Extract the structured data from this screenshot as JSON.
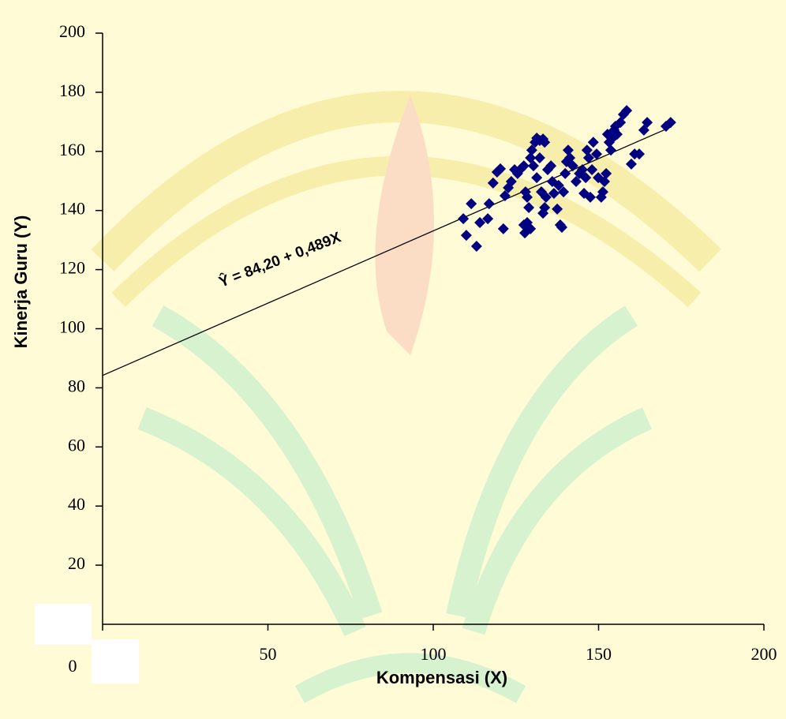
{
  "chart_data": {
    "type": "scatter",
    "x_label": "Kompensasi (X)",
    "y_label": "Kinerja Guru (Y)",
    "annotation": "Ŷ = 84,20 + 0,489X",
    "color": "#000080",
    "xlim": [
      0,
      200
    ],
    "ylim": [
      0,
      200
    ],
    "xticks": [
      0,
      50,
      100,
      150,
      200
    ],
    "yticks": [
      20,
      40,
      60,
      80,
      100,
      120,
      140,
      160,
      180,
      200
    ],
    "trendline": {
      "intercept": 84.2,
      "slope": 0.489,
      "xlim": [
        0,
        172
      ]
    },
    "x": [
      109.1,
      111.5,
      110.0,
      113.1,
      114.1,
      116.5,
      116.9,
      118.1,
      119.3,
      120.3,
      121.2,
      121.7,
      122.7,
      123.6,
      124.6,
      125.5,
      126.5,
      127.4,
      127.9,
      128.4,
      128.9,
      129.4,
      127.7,
      127.4,
      128.4,
      129.4,
      129.8,
      130.8,
      131.3,
      132.2,
      133.2,
      133.7,
      130.3,
      131.3,
      132.2,
      132.7,
      133.2,
      133.7,
      134.1,
      134.6,
      135.6,
      136.0,
      136.5,
      137.5,
      137.9,
      138.4,
      138.9,
      139.4,
      139.9,
      140.3,
      140.8,
      141.3,
      142.2,
      143.2,
      144.2,
      145.1,
      145.6,
      146.1,
      146.5,
      147.0,
      147.5,
      148.0,
      148.4,
      149.4,
      149.9,
      150.8,
      151.3,
      151.8,
      152.3,
      152.7,
      153.2,
      153.7,
      154.2,
      154.7,
      155.1,
      155.6,
      156.6,
      157.5,
      158.5,
      159.9,
      160.9,
      162.3,
      163.7,
      164.7,
      170.4,
      171.8
    ],
    "y": [
      137.2,
      142.3,
      131.6,
      127.9,
      135.9,
      137.2,
      142.3,
      149.3,
      153.0,
      154.1,
      133.8,
      145.0,
      147.7,
      149.8,
      153.8,
      152.5,
      154.1,
      155.1,
      146.3,
      144.5,
      141.0,
      133.8,
      132.4,
      135.1,
      135.9,
      157.8,
      160.4,
      163.1,
      164.5,
      163.7,
      164.2,
      163.1,
      155.1,
      151.1,
      157.8,
      146.3,
      139.1,
      141.0,
      144.5,
      153.8,
      155.1,
      149.8,
      145.8,
      140.5,
      148.5,
      135.1,
      134.3,
      146.3,
      152.5,
      156.5,
      160.4,
      157.8,
      155.1,
      149.8,
      152.5,
      153.8,
      145.8,
      151.1,
      160.4,
      157.8,
      144.5,
      153.8,
      163.1,
      159.1,
      151.1,
      144.5,
      146.3,
      149.8,
      152.5,
      165.8,
      163.1,
      160.4,
      164.5,
      167.2,
      168.5,
      165.8,
      169.8,
      172.5,
      173.8,
      155.7,
      159.1,
      159.1,
      167.2,
      169.8,
      168.5,
      169.8
    ]
  }
}
